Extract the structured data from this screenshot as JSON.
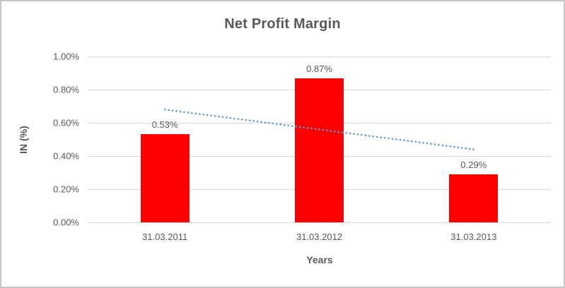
{
  "frame": {
    "background": "#ffffff",
    "border_color": "#c7c7c7"
  },
  "chart_data": {
    "type": "bar",
    "title": "Net Profit Margin",
    "xlabel": "Years",
    "ylabel": "IN (%)",
    "categories": [
      "31.03.2011",
      "31.03.2012",
      "31.03.2013"
    ],
    "values": [
      0.53,
      0.87,
      0.29
    ],
    "data_labels": [
      "0.53%",
      "0.87%",
      "0.29%"
    ],
    "ylim": [
      0,
      1.0
    ],
    "ytick_step": 0.2,
    "ytick_labels": [
      "0.00%",
      "0.20%",
      "0.40%",
      "0.60%",
      "0.80%",
      "1.00%"
    ],
    "grid": true,
    "legend": "none",
    "bar_color": "#ff0000",
    "gridline_color": "#d9d9d9",
    "text_color": "#595959",
    "trendline": {
      "type": "linear",
      "style": "dotted",
      "color": "#5b9bd5",
      "start_value": 0.68,
      "end_value": 0.44,
      "start_category_index": 0,
      "end_category_index": 2
    }
  }
}
